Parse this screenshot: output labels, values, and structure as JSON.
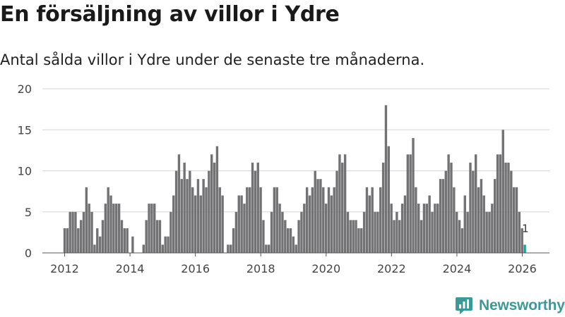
{
  "title": "En försäljning av villor i Ydre",
  "subtitle": "Antal sålda villor i Ydre under de senaste tre månaderna.",
  "brand": {
    "name": "Newsworthy",
    "icon": "newsworthy-logo-icon"
  },
  "colors": {
    "bar": "#727275",
    "highlight": "#1d9e9a",
    "grid": "#d6d6d6",
    "axis": "#444444",
    "brand": "#3a9a97"
  },
  "chart_data": {
    "type": "bar",
    "title": "En försäljning av villor i Ydre",
    "xlabel": "",
    "ylabel": "",
    "ylim": [
      0,
      20
    ],
    "yticks": [
      0,
      5,
      10,
      15,
      20
    ],
    "xticks": [
      2012,
      2014,
      2016,
      2018,
      2020,
      2022,
      2024,
      2026
    ],
    "x_start": 2012.0,
    "x_step": 0.0833,
    "values": [
      3,
      3,
      5,
      5,
      5,
      3,
      4,
      5,
      8,
      6,
      5,
      1,
      3,
      2,
      4,
      6,
      8,
      7,
      6,
      6,
      6,
      4,
      3,
      3,
      0,
      2,
      0,
      0,
      0,
      1,
      4,
      6,
      6,
      6,
      4,
      4,
      1,
      2,
      2,
      5,
      7,
      10,
      12,
      9,
      11,
      9,
      10,
      8,
      7,
      9,
      7,
      9,
      8,
      10,
      12,
      11,
      13,
      8,
      7,
      0,
      1,
      1,
      3,
      5,
      7,
      7,
      6,
      8,
      8,
      11,
      10,
      11,
      8,
      4,
      1,
      1,
      5,
      8,
      8,
      6,
      5,
      4,
      3,
      3,
      2,
      1,
      4,
      5,
      6,
      8,
      7,
      8,
      10,
      9,
      9,
      8,
      6,
      8,
      7,
      8,
      10,
      12,
      11,
      12,
      5,
      4,
      4,
      4,
      3,
      3,
      5,
      8,
      7,
      8,
      5,
      5,
      8,
      11,
      18,
      13,
      6,
      4,
      5,
      4,
      6,
      7,
      12,
      12,
      14,
      8,
      6,
      4,
      6,
      6,
      7,
      5,
      6,
      6,
      9,
      9,
      10,
      12,
      11,
      8,
      5,
      4,
      3,
      7,
      5,
      11,
      10,
      12,
      8,
      9,
      7,
      5,
      5,
      6,
      9,
      12,
      12,
      15,
      11,
      11,
      10,
      8,
      8,
      5,
      3,
      1
    ],
    "highlight_last": true,
    "annotation": {
      "label": "1"
    }
  }
}
